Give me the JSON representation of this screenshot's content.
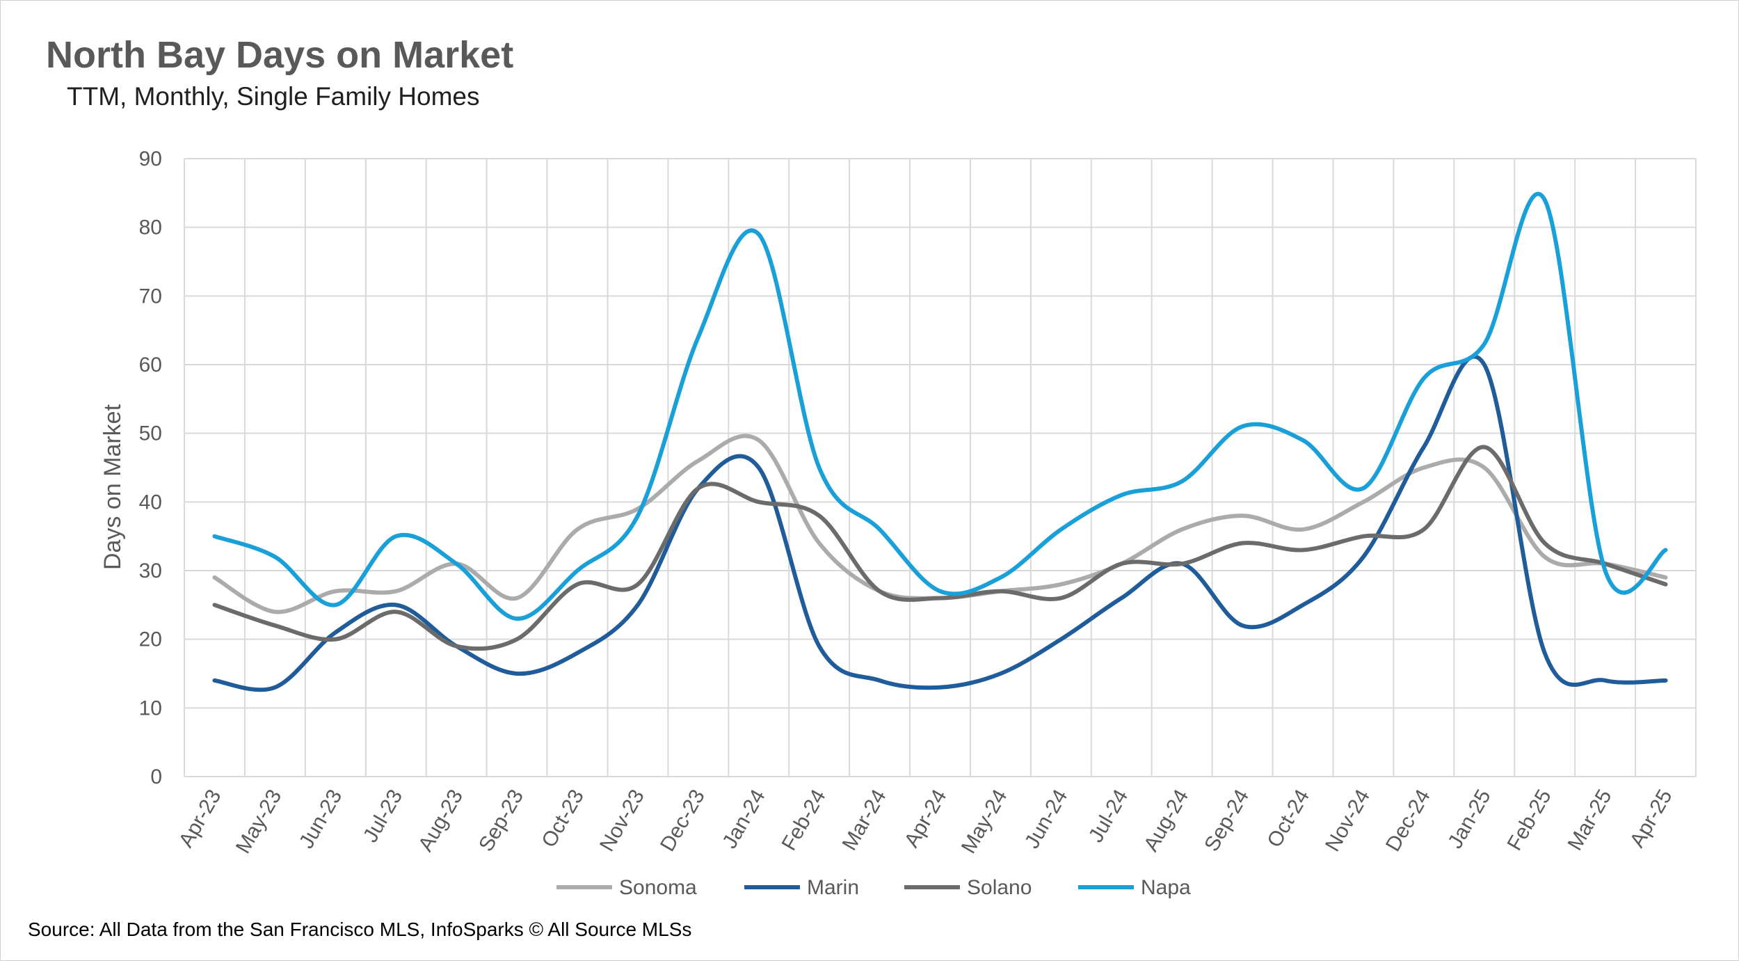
{
  "title": "North Bay Days on Market",
  "subtitle": "TTM, Monthly, Single Family Homes",
  "source": "Source: All Data from the San Francisco MLS, InfoSparks © All Source MLSs",
  "chart_data": {
    "type": "line",
    "ylabel": "Days on Market",
    "xlabel": "",
    "ylim": [
      0,
      90
    ],
    "yticks": [
      0,
      10,
      20,
      30,
      40,
      50,
      60,
      70,
      80,
      90
    ],
    "grid": true,
    "legend": "bottom",
    "categories": [
      "Apr-23",
      "May-23",
      "Jun-23",
      "Jul-23",
      "Aug-23",
      "Sep-23",
      "Oct-23",
      "Nov-23",
      "Dec-23",
      "Jan-24",
      "Feb-24",
      "Mar-24",
      "Apr-24",
      "May-24",
      "Jun-24",
      "Jul-24",
      "Aug-24",
      "Sep-24",
      "Oct-24",
      "Nov-24",
      "Dec-24",
      "Jan-25",
      "Feb-25",
      "Mar-25",
      "Apr-25"
    ],
    "series": [
      {
        "name": "Sonoma",
        "color": "#ababab",
        "values": [
          29,
          24,
          27,
          27,
          31,
          26,
          36,
          39,
          46,
          49,
          34,
          27,
          26,
          27,
          28,
          31,
          36,
          38,
          36,
          40,
          45,
          45,
          32,
          31,
          29
        ]
      },
      {
        "name": "Marin",
        "color": "#1f5c99",
        "values": [
          14,
          13,
          21,
          25,
          19,
          15,
          18,
          25,
          42,
          45,
          19,
          14,
          13,
          15,
          20,
          26,
          31,
          22,
          25,
          32,
          48,
          60,
          18,
          14,
          14
        ]
      },
      {
        "name": "Solano",
        "color": "#6b6b6b",
        "values": [
          25,
          22,
          20,
          24,
          19,
          20,
          28,
          28,
          42,
          40,
          38,
          27,
          26,
          27,
          26,
          31,
          31,
          34,
          33,
          35,
          36,
          48,
          34,
          31,
          28
        ]
      },
      {
        "name": "Napa",
        "color": "#1aa0d8",
        "values": [
          35,
          32,
          25,
          35,
          31,
          23,
          30,
          38,
          64,
          79,
          45,
          36,
          27,
          29,
          36,
          41,
          43,
          51,
          49,
          42,
          58,
          63,
          84,
          30,
          33
        ]
      }
    ]
  }
}
